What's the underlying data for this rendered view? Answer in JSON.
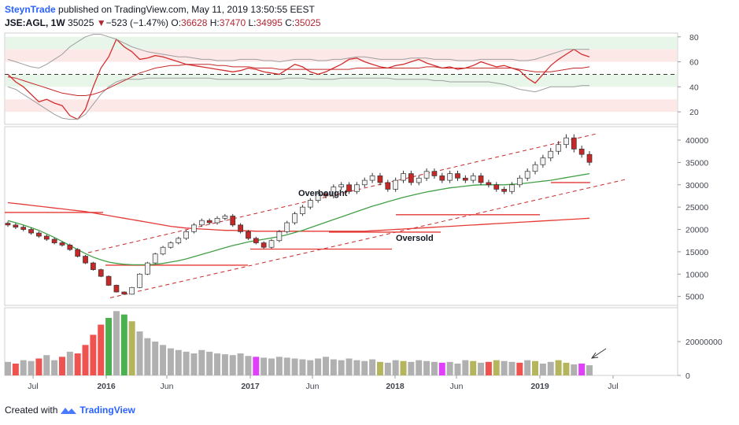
{
  "header": {
    "author": "SteynTrade",
    "published_text": "published on TradingView.com, May 11, 2019 13:50:55 EEST",
    "symbol": "JSE:AGL, 1W",
    "last": "35025",
    "change_arrow": "▼",
    "change": "−523 (−1.47%)",
    "open_label": "O:",
    "open": "36628",
    "high_label": "H:",
    "high": "37470",
    "low_label": "L:",
    "low": "34995",
    "close_label": "C:",
    "close": "35025"
  },
  "footer": {
    "created_with": "Created with",
    "brand": "TradingView",
    "logo_icon": "tradingview-logo-icon"
  },
  "colors": {
    "up": "#26a69a",
    "down": "#ef5350",
    "candle_up": "#f2f2f2",
    "candle_down": "#c62828",
    "rsi": "#d32f2f",
    "bollinger": "#9e9e9e",
    "ma_long": "#e53935",
    "ma_short": "#43a047",
    "vol_grey": "#b0b0b0",
    "vol_green": "#4caf50",
    "vol_red": "#ef5350",
    "vol_olive": "#b5b55e",
    "vol_magenta": "#e040fb",
    "channel": "#c62828",
    "zone_green": "#e8f5e9",
    "zone_red": "#fde8e8"
  },
  "chart_data": [
    {
      "type": "line",
      "panel": "rsi",
      "yticks": [
        "80",
        "60",
        "40",
        "20"
      ],
      "ylim": [
        10,
        83
      ],
      "midline": 50,
      "zones": [
        {
          "color": "green",
          "from": 70,
          "to": 80
        },
        {
          "color": "red",
          "from": 60,
          "to": 70
        },
        {
          "color": "green",
          "from": 40,
          "to": 50
        },
        {
          "color": "red",
          "from": 20,
          "to": 30
        }
      ],
      "series": [
        {
          "key": "rsi",
          "values": [
            50,
            44,
            40,
            34,
            28,
            30,
            27,
            25,
            17,
            14,
            22,
            40,
            55,
            64,
            78,
            72,
            68,
            62,
            63,
            65,
            64,
            62,
            60,
            58,
            57,
            56,
            55,
            54,
            53,
            52,
            53,
            55,
            54,
            52,
            51,
            50,
            54,
            58,
            56,
            52,
            50,
            52,
            55,
            58,
            62,
            63,
            60,
            58,
            56,
            55,
            57,
            58,
            60,
            62,
            59,
            57,
            55,
            56,
            54,
            55,
            57,
            60,
            58,
            56,
            57,
            55,
            53,
            47,
            43,
            50,
            57,
            62,
            66,
            70,
            66,
            64
          ]
        },
        {
          "key": "bollinger_upper",
          "values": [
            62,
            60,
            58,
            56,
            55,
            58,
            62,
            66,
            72,
            76,
            80,
            82,
            82,
            80,
            78,
            75,
            72,
            70,
            68,
            67,
            66,
            65,
            64,
            64,
            63,
            62,
            62,
            61,
            61,
            61,
            62,
            62,
            62,
            61,
            61,
            60,
            61,
            62,
            62,
            62,
            61,
            61,
            62,
            62,
            63,
            64,
            64,
            63,
            62,
            62,
            62,
            62,
            63,
            63,
            63,
            62,
            62,
            62,
            61,
            61,
            61,
            62,
            62,
            62,
            62,
            62,
            61,
            61,
            62,
            64,
            66,
            68,
            70,
            70,
            70,
            70
          ]
        },
        {
          "key": "bollinger_lower",
          "values": [
            40,
            38,
            34,
            30,
            26,
            22,
            18,
            15,
            14,
            14,
            18,
            26,
            34,
            40,
            44,
            46,
            46,
            46,
            47,
            47,
            47,
            47,
            47,
            47,
            47,
            47,
            47,
            46,
            46,
            46,
            46,
            46,
            46,
            46,
            46,
            46,
            47,
            47,
            47,
            46,
            46,
            46,
            46,
            47,
            47,
            47,
            47,
            47,
            47,
            47,
            46,
            46,
            46,
            46,
            46,
            45,
            45,
            44,
            44,
            44,
            44,
            44,
            44,
            43,
            42,
            40,
            38,
            37,
            36,
            38,
            40,
            40,
            40,
            40,
            41,
            41
          ]
        },
        {
          "key": "rsi_average",
          "values": [
            48,
            47,
            45,
            43,
            41,
            39,
            37,
            35,
            34,
            33,
            33,
            34,
            36,
            39,
            42,
            45,
            48,
            51,
            53,
            55,
            56,
            57,
            57,
            58,
            58,
            58,
            58,
            57,
            57,
            56,
            56,
            56,
            55,
            55,
            55,
            54,
            54,
            54,
            54,
            54,
            54,
            54,
            54,
            54,
            54,
            55,
            55,
            55,
            55,
            55,
            55,
            55,
            55,
            55,
            56,
            56,
            55,
            55,
            55,
            55,
            55,
            55,
            55,
            55,
            55,
            55,
            54,
            53,
            52,
            52,
            52,
            53,
            54,
            55,
            55,
            56
          ]
        }
      ]
    },
    {
      "type": "candlestick",
      "panel": "price",
      "yticks": [
        "40000",
        "35000",
        "30000",
        "25000",
        "20000",
        "15000",
        "10000",
        "5000"
      ],
      "ylim": [
        3000,
        43000
      ],
      "xlabels": [
        "Jul",
        "2016",
        "Jun",
        "2017",
        "Jun",
        "2018",
        "Jun",
        "2019",
        "Jul"
      ],
      "annotations": [
        "Overbought",
        "Oversold"
      ],
      "close": [
        21000,
        20500,
        20000,
        19200,
        18500,
        17800,
        17000,
        16500,
        15500,
        14000,
        12500,
        11000,
        9500,
        7500,
        6000,
        5500,
        7000,
        10000,
        12500,
        14500,
        16000,
        17000,
        18000,
        19500,
        21000,
        22000,
        21500,
        22500,
        23000,
        21000,
        19500,
        18000,
        17000,
        16000,
        17500,
        19500,
        21500,
        23500,
        25000,
        26500,
        28000,
        27500,
        29500,
        30000,
        28500,
        30000,
        31000,
        32000,
        30500,
        29000,
        31000,
        32500,
        30500,
        31500,
        33000,
        32000,
        31000,
        32500,
        31500,
        31000,
        32000,
        30500,
        30000,
        29000,
        28500,
        30000,
        31500,
        33000,
        34500,
        36000,
        37500,
        39000,
        40500,
        38000,
        36800,
        35025
      ],
      "ma_long": [
        26000,
        25800,
        25600,
        25400,
        25200,
        25000,
        24800,
        24600,
        24400,
        24200,
        24000,
        23700,
        23400,
        23100,
        22800,
        22500,
        22200,
        21900,
        21600,
        21300,
        21000,
        20700,
        20500,
        20300,
        20200,
        20100,
        20000,
        19900,
        19800,
        19800,
        19700,
        19700,
        19600,
        19600,
        19600,
        19600,
        19600,
        19600,
        19600,
        19600,
        19600,
        19600,
        19600,
        19600,
        19600,
        19600,
        19600,
        19700,
        19800,
        19900,
        20000,
        20100,
        20200,
        20300,
        20400,
        20500,
        20600,
        20700,
        20800,
        20900,
        21000,
        21100,
        21200,
        21300,
        21400,
        21500,
        21600,
        21700,
        21800,
        21900,
        22000,
        22100,
        22200,
        22300,
        22400,
        22500
      ],
      "ma_short": [
        22000,
        21500,
        21000,
        20400,
        19800,
        19000,
        18200,
        17300,
        16400,
        15500,
        14600,
        13800,
        13200,
        12700,
        12400,
        12200,
        12100,
        12100,
        12100,
        12200,
        12400,
        12700,
        13000,
        13400,
        13900,
        14400,
        14900,
        15400,
        15900,
        16400,
        16800,
        17200,
        17500,
        17800,
        18100,
        18400,
        18800,
        19300,
        19800,
        20400,
        21000,
        21600,
        22200,
        22800,
        23400,
        24000,
        24600,
        25200,
        25700,
        26200,
        26700,
        27200,
        27600,
        28000,
        28400,
        28700,
        29000,
        29300,
        29500,
        29700,
        29900,
        30000,
        30000,
        30000,
        30000,
        30100,
        30200,
        30400,
        30600,
        30800,
        31000,
        31300,
        31600,
        31900,
        32200,
        32500
      ]
    },
    {
      "type": "bar",
      "panel": "volume",
      "yticks": [
        "20000000",
        "0"
      ],
      "ylim": [
        0,
        40000000
      ],
      "values": [
        8000000,
        7000000,
        9000000,
        8500000,
        10000000,
        12000000,
        9000000,
        11000000,
        14000000,
        13000000,
        18000000,
        24000000,
        30000000,
        34000000,
        38000000,
        36000000,
        32000000,
        26000000,
        22000000,
        20000000,
        18000000,
        16000000,
        15000000,
        14000000,
        13000000,
        15000000,
        14000000,
        13000000,
        12500000,
        12000000,
        13000000,
        11500000,
        11000000,
        10500000,
        10000000,
        11000000,
        10500000,
        10000000,
        9500000,
        9000000,
        10000000,
        11000000,
        9500000,
        9000000,
        10000000,
        9000000,
        8500000,
        9500000,
        8000000,
        7500000,
        9000000,
        8500000,
        8000000,
        9000000,
        8500000,
        8000000,
        7500000,
        8000000,
        7000000,
        9000000,
        8500000,
        7500000,
        8000000,
        9000000,
        8500000,
        8000000,
        7500000,
        9000000,
        8500000,
        7000000,
        8000000,
        9000000,
        7500000,
        6500000,
        7000000,
        6000000
      ],
      "colors": [
        "g",
        "r",
        "g",
        "g",
        "r",
        "g",
        "g",
        "r",
        "g",
        "r",
        "r",
        "r",
        "r",
        "G",
        "g",
        "G",
        "o",
        "g",
        "g",
        "g",
        "g",
        "g",
        "g",
        "g",
        "g",
        "g",
        "g",
        "g",
        "g",
        "g",
        "g",
        "g",
        "m",
        "g",
        "g",
        "g",
        "g",
        "g",
        "g",
        "g",
        "g",
        "g",
        "g",
        "g",
        "g",
        "g",
        "g",
        "g",
        "o",
        "g",
        "g",
        "o",
        "g",
        "g",
        "g",
        "g",
        "m",
        "g",
        "g",
        "g",
        "o",
        "g",
        "r",
        "o",
        "g",
        "g",
        "r",
        "g",
        "o",
        "g",
        "g",
        "o",
        "o",
        "g",
        "m",
        "g"
      ]
    }
  ]
}
